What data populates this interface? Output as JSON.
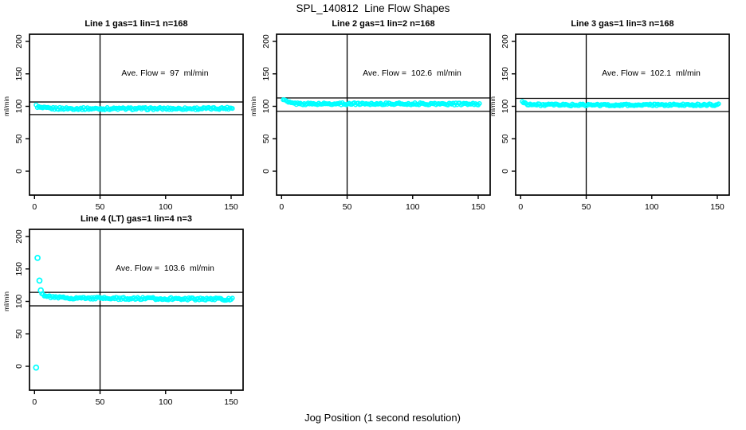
{
  "figure": {
    "title": "SPL_140812  Line Flow Shapes",
    "xlabel": "Jog Position (1 second resolution)",
    "background_color": "#ffffff",
    "line_color": "#000000",
    "marker_color": "#00ffff"
  },
  "chart_data": [
    {
      "type": "scatter",
      "title": "Line 1 gas=1 lin=1 n=168",
      "annotation": "Ave. Flow =  97  ml/min",
      "ave_flow_ml_min": 97,
      "n_jogs": 168,
      "ylabel": "ml/min",
      "x_ticks": [
        0,
        50,
        100,
        150
      ],
      "y_ticks": [
        0,
        50,
        100,
        150,
        200
      ],
      "xlim": [
        -4,
        159
      ],
      "ylim": [
        -34,
        211
      ],
      "vline_x": 50,
      "hlines": [
        106.7,
        87.3
      ],
      "marker_color": "#00ffff",
      "x_range": [
        1.2,
        151
      ],
      "points_n": 150,
      "jitter": 1.8,
      "series_keypoints": [
        [
          1.2,
          101
        ],
        [
          2.5,
          99
        ],
        [
          5,
          97.5
        ],
        [
          10,
          96.8
        ],
        [
          40,
          96.4
        ],
        [
          90,
          96.3
        ],
        [
          135,
          96.6
        ],
        [
          151,
          97.4
        ]
      ],
      "outliers": []
    },
    {
      "type": "scatter",
      "title": "Line 2 gas=1 lin=2 n=168",
      "annotation": "Ave. Flow =  102.6  ml/min",
      "ave_flow_ml_min": 102.6,
      "n_jogs": 168,
      "ylabel": "ml/min",
      "x_ticks": [
        0,
        50,
        100,
        150
      ],
      "y_ticks": [
        0,
        50,
        100,
        150,
        200
      ],
      "xlim": [
        -4,
        159
      ],
      "ylim": [
        -34,
        211
      ],
      "vline_x": 50,
      "hlines": [
        112.9,
        92.3
      ],
      "marker_color": "#00ffff",
      "x_range": [
        1.2,
        151
      ],
      "points_n": 150,
      "jitter": 1.6,
      "series_keypoints": [
        [
          1.2,
          111.5
        ],
        [
          2.5,
          109.5
        ],
        [
          4,
          107
        ],
        [
          6,
          105.5
        ],
        [
          10,
          104.3
        ],
        [
          20,
          103.7
        ],
        [
          60,
          104
        ],
        [
          110,
          103.8
        ],
        [
          151,
          103.4
        ]
      ],
      "outliers": []
    },
    {
      "type": "scatter",
      "title": "Line 3 gas=1 lin=3 n=168",
      "annotation": "Ave. Flow =  102.1  ml/min",
      "ave_flow_ml_min": 102.1,
      "n_jogs": 168,
      "ylabel": "ml/min",
      "x_ticks": [
        0,
        50,
        100,
        150
      ],
      "y_ticks": [
        0,
        50,
        100,
        150,
        200
      ],
      "xlim": [
        -4,
        159
      ],
      "ylim": [
        -34,
        211
      ],
      "vline_x": 50,
      "hlines": [
        112.3,
        91.9
      ],
      "marker_color": "#00ffff",
      "x_range": [
        1.2,
        151
      ],
      "points_n": 150,
      "jitter": 1.6,
      "series_keypoints": [
        [
          1.2,
          107
        ],
        [
          2.5,
          105.5
        ],
        [
          5,
          103.5
        ],
        [
          10,
          102.4
        ],
        [
          40,
          102
        ],
        [
          100,
          102
        ],
        [
          151,
          102.4
        ]
      ],
      "outliers": []
    },
    {
      "type": "scatter",
      "title": "Line 4 (LT) gas=1 lin=4 n=3",
      "annotation": "Ave. Flow =  103.6  ml/min",
      "ave_flow_ml_min": 103.6,
      "n_jogs": 3,
      "ylabel": "ml/min",
      "x_ticks": [
        0,
        50,
        100,
        150
      ],
      "y_ticks": [
        0,
        50,
        100,
        150,
        200
      ],
      "xlim": [
        -4,
        159
      ],
      "ylim": [
        -34,
        211
      ],
      "vline_x": 50,
      "hlines": [
        114.0,
        93.2
      ],
      "marker_color": "#00ffff",
      "x_range": [
        5.5,
        151
      ],
      "points_n": 150,
      "jitter": 1.8,
      "series_keypoints": [
        [
          5.5,
          113
        ],
        [
          7,
          110
        ],
        [
          10,
          107.5
        ],
        [
          16,
          106
        ],
        [
          30,
          105.2
        ],
        [
          60,
          104.6
        ],
        [
          100,
          104.2
        ],
        [
          130,
          103.8
        ],
        [
          151,
          103.2
        ]
      ],
      "outliers": [
        [
          1.2,
          -2
        ],
        [
          2.3,
          167
        ],
        [
          3.8,
          132
        ],
        [
          4.8,
          117
        ]
      ]
    }
  ]
}
